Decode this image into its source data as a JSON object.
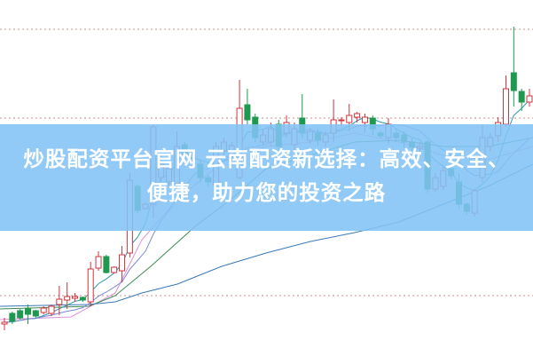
{
  "headline": "炒股配资平台官网 云南配资新选择：高效、安全、便捷，助力您的投资之路",
  "colors": {
    "up": "#d0343c",
    "down": "#1e9a50",
    "grid": "#c89090",
    "banner": "#82c3f5",
    "ma_fast": "#2a9aa8",
    "ma_mid": "#7a86d8",
    "ma_pink": "#e090d8",
    "ma_green": "#3a8a50",
    "ma_long": "#3a7ab8"
  },
  "chart_data": {
    "type": "candlestick",
    "grid": "horizontal dotted",
    "gridlines": [
      367,
      267,
      67
    ],
    "ylim": [
      0,
      400
    ],
    "candles": [
      [
        35,
        37,
        42,
        28
      ],
      [
        47,
        38,
        49,
        35
      ],
      [
        50,
        42,
        52,
        40
      ],
      [
        52,
        46,
        57,
        35
      ],
      [
        50,
        44,
        51,
        42
      ],
      [
        48,
        53,
        55,
        46
      ],
      [
        47,
        55,
        57,
        44
      ],
      [
        57,
        63,
        78,
        45
      ],
      [
        62,
        66,
        82,
        52
      ],
      [
        64,
        66,
        70,
        60
      ],
      [
        65,
        62,
        66,
        60
      ],
      [
        60,
        97,
        105,
        55
      ],
      [
        98,
        111,
        117,
        95
      ],
      [
        111,
        93,
        113,
        92
      ],
      [
        93,
        99,
        100,
        92
      ],
      [
        95,
        113,
        123,
        82
      ],
      [
        115,
        197,
        205,
        110
      ],
      [
        190,
        163,
        192,
        160
      ],
      [
        165,
        170,
        172,
        164
      ],
      [
        170,
        257,
        260,
        155
      ],
      [
        200,
        215,
        225,
        195
      ],
      [
        195,
        210,
        215,
        188
      ],
      [
        193,
        235,
        252,
        190
      ],
      [
        237,
        228,
        240,
        225
      ],
      [
        222,
        225,
        230,
        218
      ],
      [
        215,
        200,
        220,
        195
      ],
      [
        200,
        195,
        203,
        190
      ],
      [
        192,
        235,
        240,
        190
      ],
      [
        230,
        240,
        245,
        225
      ],
      [
        225,
        236,
        240,
        220
      ],
      [
        200,
        278,
        310,
        198
      ],
      [
        282,
        265,
        300,
        260
      ],
      [
        268,
        245,
        272,
        240
      ],
      [
        240,
        248,
        255,
        236
      ],
      [
        240,
        255,
        262,
        235
      ],
      [
        260,
        235,
        265,
        230
      ],
      [
        250,
        262,
        270,
        245
      ],
      [
        237,
        255,
        262,
        230
      ],
      [
        267,
        250,
        294,
        244
      ],
      [
        242,
        252,
        256,
        238
      ],
      [
        250,
        242,
        255,
        236
      ],
      [
        240,
        248,
        252,
        235
      ],
      [
        250,
        265,
        288,
        240
      ],
      [
        265,
        265,
        268,
        258
      ],
      [
        262,
        270,
        283,
        252
      ],
      [
        268,
        272,
        274,
        262
      ],
      [
        262,
        268,
        272,
        250
      ],
      [
        267,
        255,
        270,
        248
      ],
      [
        250,
        247,
        252,
        244
      ],
      [
        245,
        260,
        267,
        238
      ],
      [
        250,
        245,
        255,
        240
      ],
      [
        248,
        240,
        252,
        234
      ],
      [
        240,
        234,
        244,
        228
      ],
      [
        233,
        235,
        240,
        228
      ],
      [
        240,
        187,
        242,
        183
      ],
      [
        187,
        200,
        205,
        184
      ],
      [
        190,
        208,
        212,
        186
      ],
      [
        210,
        202,
        212,
        198
      ],
      [
        195,
        170,
        205,
        165
      ],
      [
        170,
        162,
        172,
        158
      ],
      [
        160,
        185,
        188,
        156
      ],
      [
        200,
        245,
        260,
        195
      ],
      [
        235,
        245,
        250,
        230
      ],
      [
        247,
        262,
        268,
        240
      ],
      [
        260,
        300,
        315,
        258
      ],
      [
        318,
        298,
        370,
        280
      ],
      [
        297,
        285,
        300,
        275
      ],
      [
        285,
        292,
        300,
        280
      ]
    ],
    "moving_averages": [
      {
        "color": "ma_pink",
        "points": [
          [
            0,
            40
          ],
          [
            80,
            43
          ],
          [
            130,
            70
          ],
          [
            160,
            130
          ],
          [
            200,
            175
          ],
          [
            260,
            225
          ],
          [
            300,
            235
          ],
          [
            350,
            240
          ],
          [
            400,
            250
          ],
          [
            450,
            240
          ],
          [
            500,
            225
          ],
          [
            550,
            220
          ],
          [
            601,
            235
          ]
        ]
      },
      {
        "color": "ma_green",
        "points": [
          [
            0,
            52
          ],
          [
            100,
            55
          ],
          [
            130,
            67
          ],
          [
            170,
            100
          ],
          [
            220,
            145
          ],
          [
            260,
            175
          ],
          [
            300,
            210
          ],
          [
            350,
            225
          ],
          [
            400,
            240
          ],
          [
            450,
            242
          ],
          [
            500,
            235
          ],
          [
            550,
            235
          ],
          [
            601,
            245
          ]
        ]
      },
      {
        "color": "ma_long",
        "points": [
          [
            0,
            55
          ],
          [
            100,
            57
          ],
          [
            130,
            60
          ],
          [
            160,
            70
          ],
          [
            200,
            80
          ],
          [
            250,
            100
          ],
          [
            300,
            115
          ],
          [
            350,
            128
          ],
          [
            400,
            138
          ],
          [
            450,
            150
          ],
          [
            500,
            170
          ],
          [
            550,
            190
          ],
          [
            601,
            215
          ]
        ]
      }
    ]
  }
}
